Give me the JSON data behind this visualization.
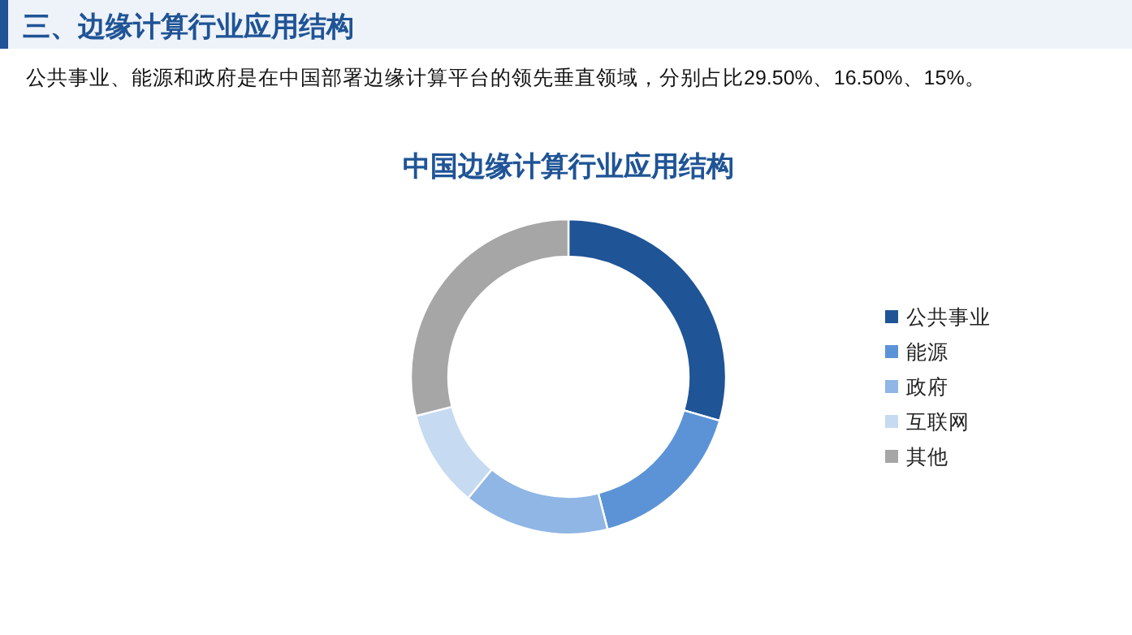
{
  "chart_data": {
    "type": "donut",
    "title": "中国边缘计算行业应用结构",
    "annotations": [
      "三、边缘计算行业应用结构",
      "公共事业、能源和政府是在中国部署边缘计算平台的领先垂直领域，分别占比29.50%、16.50%、15%。"
    ],
    "categories": [
      "公共事业",
      "能源",
      "政府",
      "互联网",
      "其他"
    ],
    "values": [
      29.5,
      16.5,
      15,
      10,
      29
    ],
    "colors": [
      "#1f5496",
      "#5b93d6",
      "#8fb6e4",
      "#c6daf1",
      "#a6a6a6"
    ],
    "legend": "right"
  }
}
